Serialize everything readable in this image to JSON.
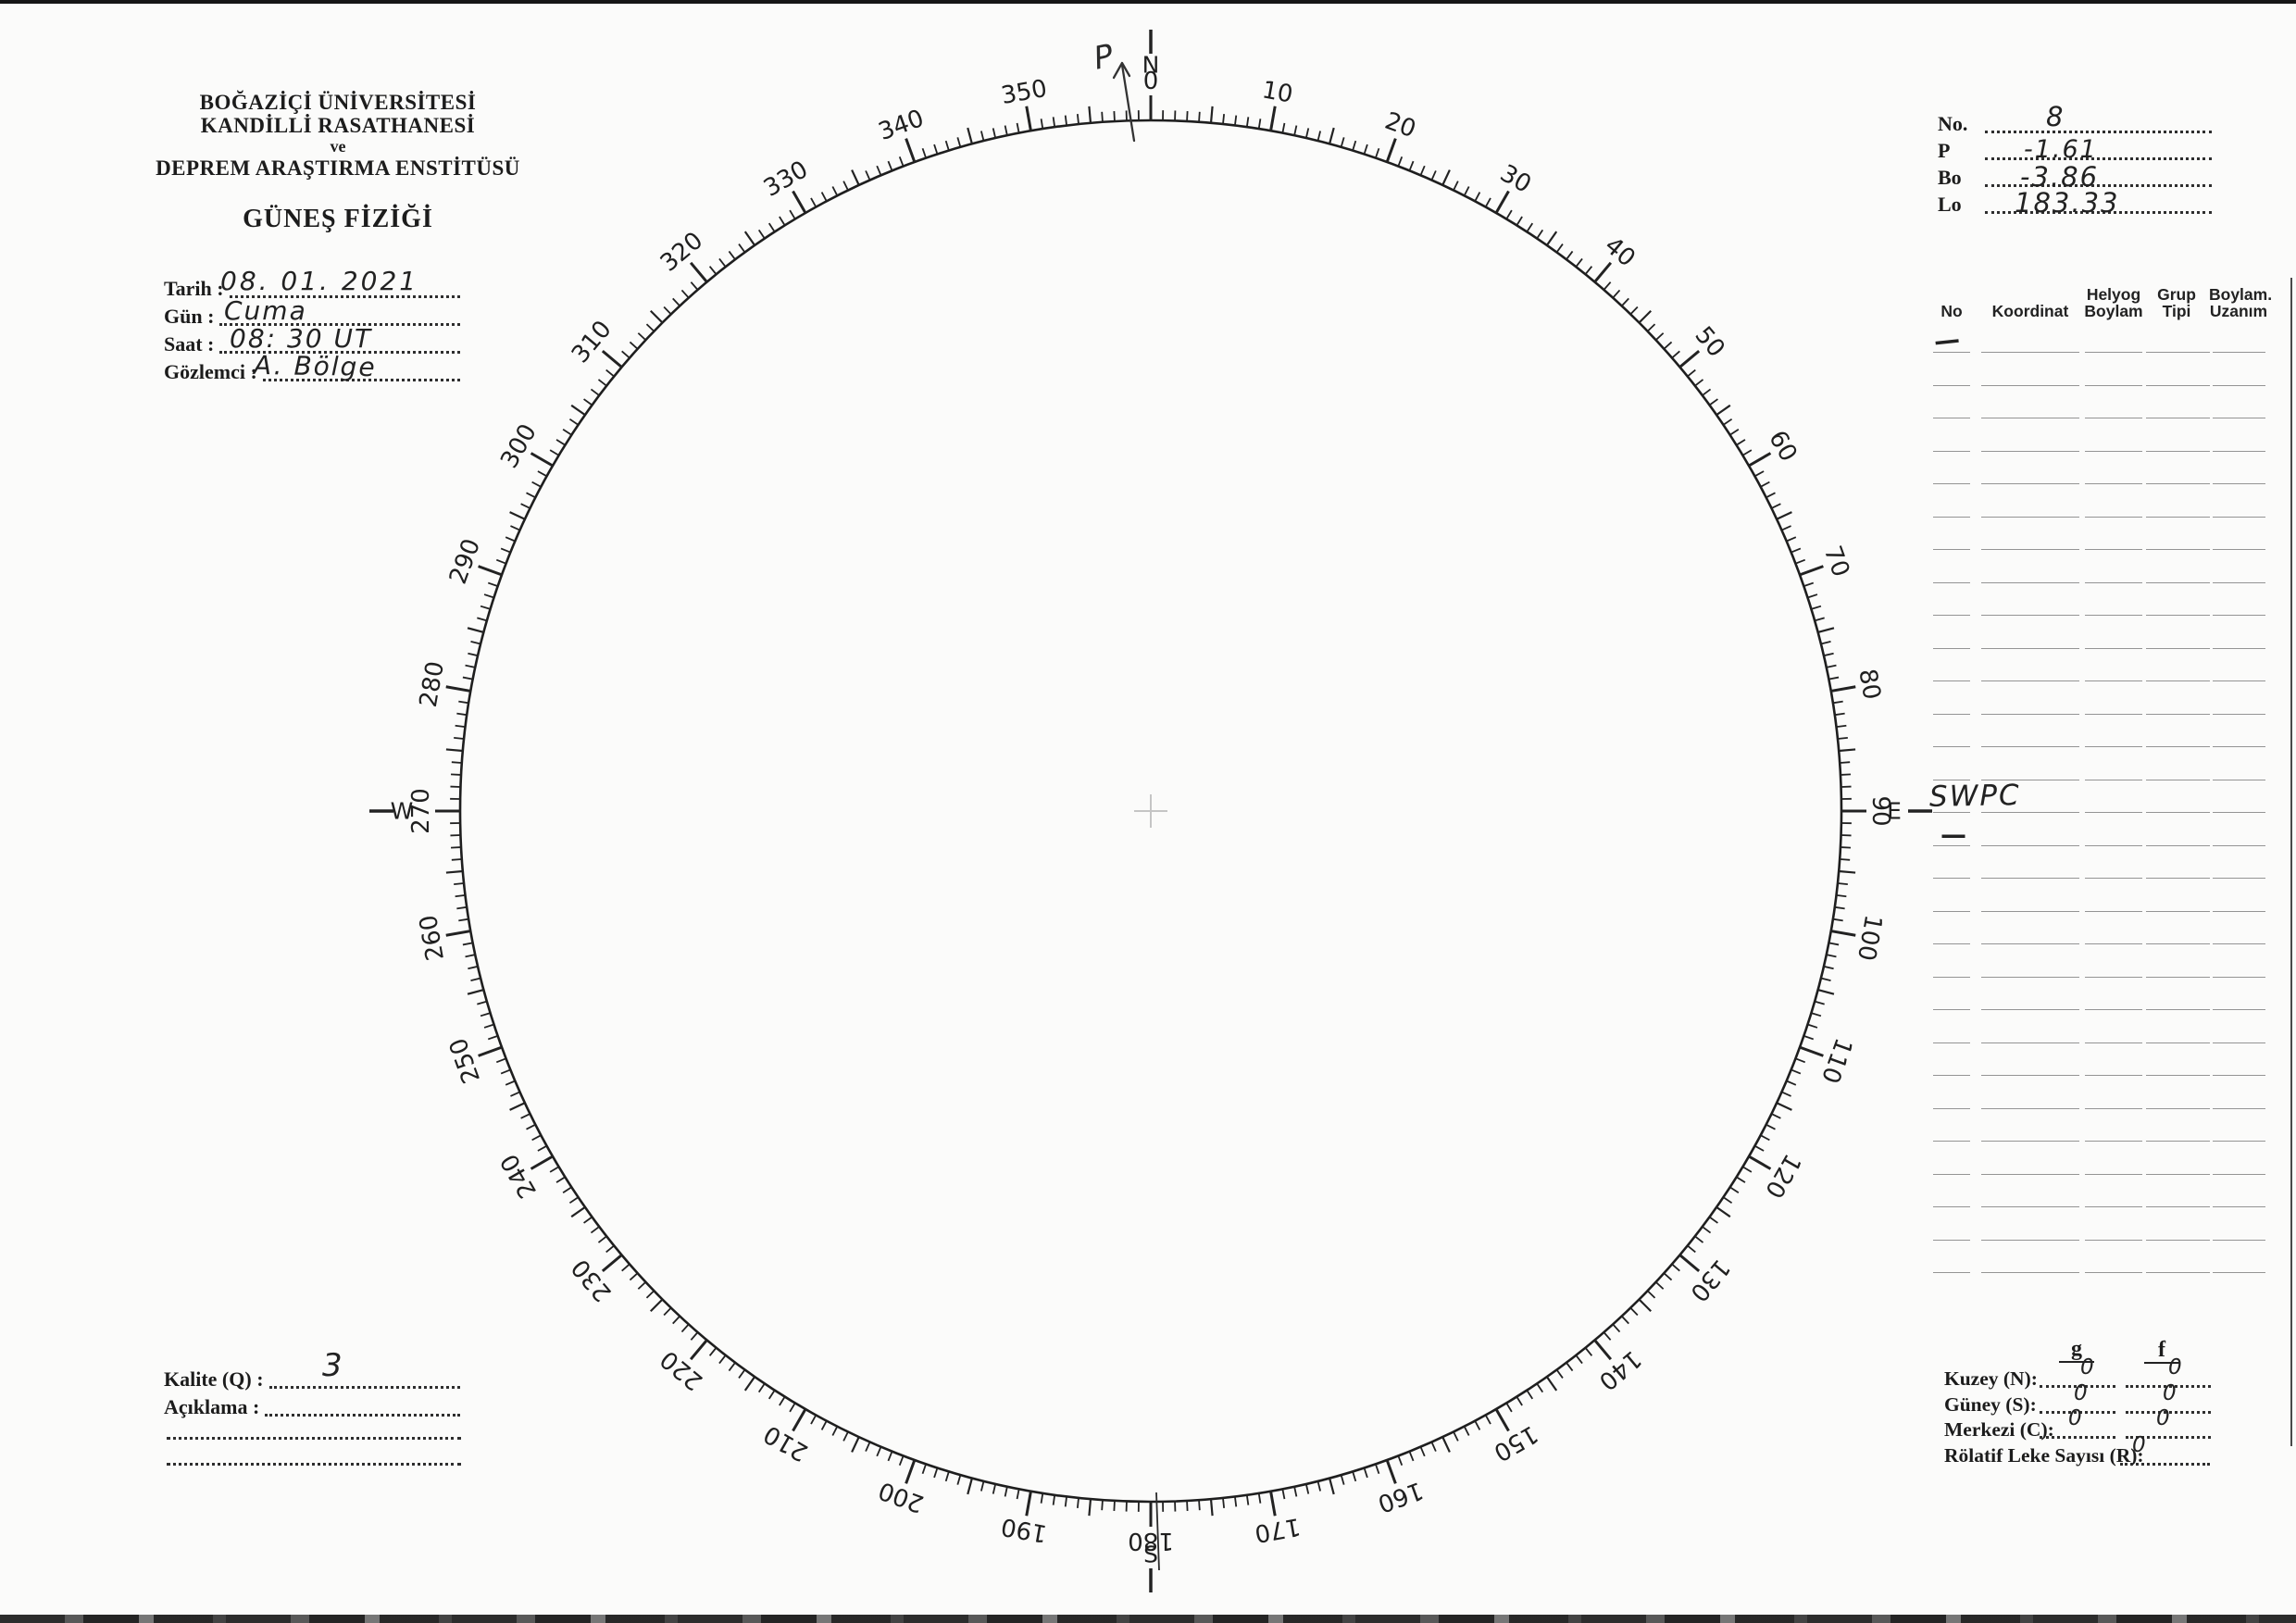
{
  "institution": {
    "line1": "BOĞAZİÇİ ÜNİVERSİTESİ",
    "line2": "KANDİLLİ RASATHANESİ",
    "line3": "ve",
    "line4": "DEPREM ARAŞTIRMA ENSTİTÜSÜ",
    "form_title": "GÜNEŞ FİZİĞİ"
  },
  "observation": {
    "fields": [
      {
        "label": "Tarih :",
        "value": "08. 01. 2021"
      },
      {
        "label": "Gün :",
        "value": "Cuma"
      },
      {
        "label": "Saat :",
        "value": "08: 30 UT"
      },
      {
        "label": "Gözlemci :",
        "value": "A. Bölge"
      }
    ]
  },
  "ephemeris": {
    "fields": [
      {
        "label": "No.",
        "value": "8"
      },
      {
        "label": "P",
        "value": "-1.61"
      },
      {
        "label": "Bo",
        "value": "-3.86"
      },
      {
        "label": "Lo",
        "value": "183.33"
      }
    ]
  },
  "groups_table": {
    "columns": [
      {
        "line1": "No",
        "line2": ""
      },
      {
        "line1": "Koordinat",
        "line2": ""
      },
      {
        "line1": "Helyog",
        "line2": "Boylam"
      },
      {
        "line1": "Grup",
        "line2": "Tipi"
      },
      {
        "line1": "Boylam.",
        "line2": "Uzanım"
      }
    ],
    "row_count": 29,
    "annotations": {
      "row1_no_dash": "—",
      "swpc_note": "SWPC",
      "swpc_row_no_dash": "—"
    }
  },
  "dial": {
    "degree_labels": [
      "0",
      "10",
      "20",
      "30",
      "40",
      "50",
      "60",
      "70",
      "80",
      "90",
      "100",
      "110",
      "120",
      "130",
      "140",
      "150",
      "160",
      "170",
      "180",
      "190",
      "200",
      "210",
      "220",
      "230",
      "240",
      "250",
      "260",
      "270",
      "280",
      "290",
      "300",
      "310",
      "320",
      "330",
      "340",
      "350"
    ],
    "compass": {
      "north": "N",
      "east": "E",
      "south": "S",
      "west": "W"
    },
    "pole_annotation": "P"
  },
  "quality": {
    "kalite_label": "Kalite (Q) :",
    "kalite_value": "3",
    "aciklama_label": "Açıklama :"
  },
  "sunspot_counts": {
    "col_g": "g",
    "col_f": "f",
    "rows": [
      {
        "label": "Kuzey (N):",
        "g": "0",
        "f": "0"
      },
      {
        "label": "Güney (S):",
        "g": "0",
        "f": "0"
      },
      {
        "label": "Merkezi (C):",
        "g": "0",
        "f": "0"
      }
    ],
    "relative_label": "Rölatif Leke Sayısı (R):",
    "relative_value": "0"
  }
}
